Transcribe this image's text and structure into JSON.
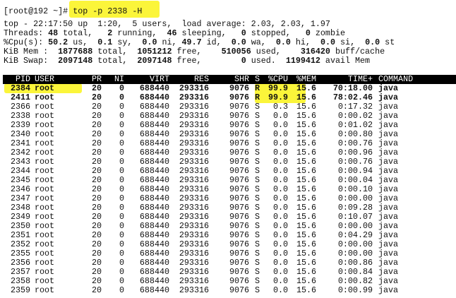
{
  "terminal": {
    "command_line": [
      "[root@192 ~]",
      "# top -p 2338 -H"
    ],
    "summary": [
      [
        "top - 22:17:50 up  1:20,  5 users,  load average: 2.03, 2.03, 1.97"
      ],
      [
        "Threads: ",
        "48",
        " total,   ",
        "2",
        " running,  ",
        "46",
        " sleeping,   ",
        "0",
        " stopped,   ",
        "0",
        " zombie"
      ],
      [
        "%Cpu(s): ",
        "50.2",
        " us,  ",
        "0.1",
        " sy,  ",
        "0.0",
        " ni, ",
        "49.7",
        " id,  ",
        "0.0",
        " wa,  ",
        "0.0",
        " hi,  ",
        "0.0",
        " si,  ",
        "0.0",
        " st"
      ],
      [
        "KiB Mem : ",
        " 1877688",
        " total,  ",
        "1051212",
        " free,   ",
        " 510056",
        " used,   ",
        " 316420",
        " buff/cache"
      ],
      [
        "KiB Swap: ",
        " 2097148",
        " total,  ",
        "2097148",
        " free,        ",
        "0",
        " used.  ",
        "1199412",
        " avail Mem"
      ]
    ],
    "table": {
      "header": [
        "PID",
        "USER",
        "PR",
        "NI",
        "VIRT",
        "RES",
        "SHR",
        "S",
        "%CPU",
        "%MEM",
        "TIME+",
        "COMMAND"
      ],
      "rows": [
        {
          "bold": true,
          "cells": [
            "2384",
            "root",
            "20",
            "0",
            "688440",
            "293316",
            "9076",
            "R",
            "99.9",
            "15.6",
            "70:18.00",
            "java"
          ]
        },
        {
          "bold": true,
          "cells": [
            "2411",
            "root",
            "20",
            "0",
            "688440",
            "293316",
            "9076",
            "R",
            "99.9",
            "15.6",
            "78:02.46",
            "java"
          ]
        },
        {
          "bold": false,
          "cells": [
            "2366",
            "root",
            "20",
            "0",
            "688440",
            "293316",
            "9076",
            "S",
            "0.3",
            "15.6",
            "0:17.32",
            "java"
          ]
        },
        {
          "bold": false,
          "cells": [
            "2338",
            "root",
            "20",
            "0",
            "688440",
            "293316",
            "9076",
            "S",
            "0.0",
            "15.6",
            "0:00.02",
            "java"
          ]
        },
        {
          "bold": false,
          "cells": [
            "2339",
            "root",
            "20",
            "0",
            "688440",
            "293316",
            "9076",
            "S",
            "0.0",
            "15.6",
            "0:01.02",
            "java"
          ]
        },
        {
          "bold": false,
          "cells": [
            "2340",
            "root",
            "20",
            "0",
            "688440",
            "293316",
            "9076",
            "S",
            "0.0",
            "15.6",
            "0:00.80",
            "java"
          ]
        },
        {
          "bold": false,
          "cells": [
            "2341",
            "root",
            "20",
            "0",
            "688440",
            "293316",
            "9076",
            "S",
            "0.0",
            "15.6",
            "0:00.76",
            "java"
          ]
        },
        {
          "bold": false,
          "cells": [
            "2342",
            "root",
            "20",
            "0",
            "688440",
            "293316",
            "9076",
            "S",
            "0.0",
            "15.6",
            "0:00.96",
            "java"
          ]
        },
        {
          "bold": false,
          "cells": [
            "2343",
            "root",
            "20",
            "0",
            "688440",
            "293316",
            "9076",
            "S",
            "0.0",
            "15.6",
            "0:00.76",
            "java"
          ]
        },
        {
          "bold": false,
          "cells": [
            "2344",
            "root",
            "20",
            "0",
            "688440",
            "293316",
            "9076",
            "S",
            "0.0",
            "15.6",
            "0:00.94",
            "java"
          ]
        },
        {
          "bold": false,
          "cells": [
            "2345",
            "root",
            "20",
            "0",
            "688440",
            "293316",
            "9076",
            "S",
            "0.0",
            "15.6",
            "0:00.04",
            "java"
          ]
        },
        {
          "bold": false,
          "cells": [
            "2346",
            "root",
            "20",
            "0",
            "688440",
            "293316",
            "9076",
            "S",
            "0.0",
            "15.6",
            "0:00.10",
            "java"
          ]
        },
        {
          "bold": false,
          "cells": [
            "2347",
            "root",
            "20",
            "0",
            "688440",
            "293316",
            "9076",
            "S",
            "0.0",
            "15.6",
            "0:00.00",
            "java"
          ]
        },
        {
          "bold": false,
          "cells": [
            "2348",
            "root",
            "20",
            "0",
            "688440",
            "293316",
            "9076",
            "S",
            "0.0",
            "15.6",
            "0:09.28",
            "java"
          ]
        },
        {
          "bold": false,
          "cells": [
            "2349",
            "root",
            "20",
            "0",
            "688440",
            "293316",
            "9076",
            "S",
            "0.0",
            "15.6",
            "0:10.07",
            "java"
          ]
        },
        {
          "bold": false,
          "cells": [
            "2350",
            "root",
            "20",
            "0",
            "688440",
            "293316",
            "9076",
            "S",
            "0.0",
            "15.6",
            "0:00.00",
            "java"
          ]
        },
        {
          "bold": false,
          "cells": [
            "2351",
            "root",
            "20",
            "0",
            "688440",
            "293316",
            "9076",
            "S",
            "0.0",
            "15.6",
            "0:04.29",
            "java"
          ]
        },
        {
          "bold": false,
          "cells": [
            "2352",
            "root",
            "20",
            "0",
            "688440",
            "293316",
            "9076",
            "S",
            "0.0",
            "15.6",
            "0:00.00",
            "java"
          ]
        },
        {
          "bold": false,
          "cells": [
            "2355",
            "root",
            "20",
            "0",
            "688440",
            "293316",
            "9076",
            "S",
            "0.0",
            "15.6",
            "0:00.00",
            "java"
          ]
        },
        {
          "bold": false,
          "cells": [
            "2356",
            "root",
            "20",
            "0",
            "688440",
            "293316",
            "9076",
            "S",
            "0.0",
            "15.6",
            "0:00.86",
            "java"
          ]
        },
        {
          "bold": false,
          "cells": [
            "2357",
            "root",
            "20",
            "0",
            "688440",
            "293316",
            "9076",
            "S",
            "0.0",
            "15.6",
            "0:00.84",
            "java"
          ]
        },
        {
          "bold": false,
          "cells": [
            "2358",
            "root",
            "20",
            "0",
            "688440",
            "293316",
            "9076",
            "S",
            "0.0",
            "15.6",
            "0:00.82",
            "java"
          ]
        },
        {
          "bold": false,
          "cells": [
            "2359",
            "root",
            "20",
            "0",
            "688440",
            "293316",
            "9076",
            "S",
            "0.0",
            "15.6",
            "0:00.99",
            "java"
          ]
        }
      ]
    }
  }
}
